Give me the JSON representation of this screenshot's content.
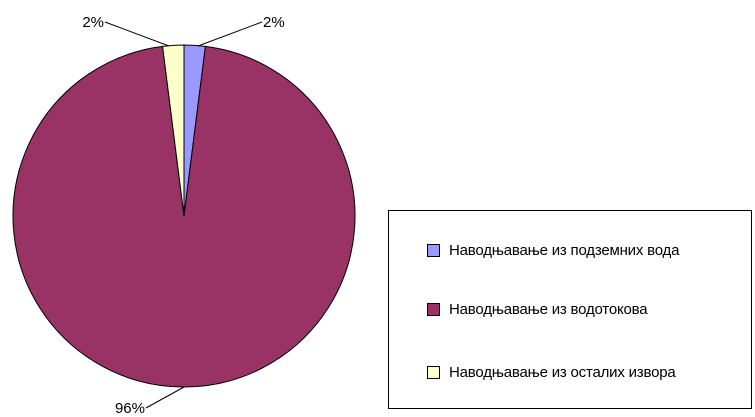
{
  "chart_data": {
    "type": "pie",
    "title": "",
    "legend_position": "right",
    "slices": [
      {
        "name": "Наводњавање из подземних вода",
        "value": 2,
        "label": "2%",
        "color": "#9999ff"
      },
      {
        "name": "Наводњавање из водотокова",
        "value": 96,
        "label": "96%",
        "color": "#993366"
      },
      {
        "name": "Наводњавање из осталих извора",
        "value": 2,
        "label": "2%",
        "color": "#ffffcc"
      }
    ]
  }
}
